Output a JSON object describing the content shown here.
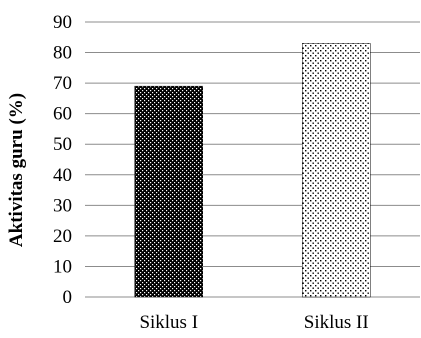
{
  "chart_data": {
    "type": "bar",
    "categories": [
      "Siklus I",
      "Siklus II"
    ],
    "values": [
      69,
      83
    ],
    "title": "",
    "xlabel": "",
    "ylabel": "Aktivitas guru (%)",
    "ylim": [
      0,
      90
    ],
    "yticks": [
      "0",
      "10",
      "20",
      "30",
      "40",
      "50",
      "60",
      "70",
      "80",
      "90"
    ],
    "grid": true,
    "legend": "none",
    "bar_patterns": [
      "dense-dots",
      "sparse-dots"
    ],
    "colors": {
      "bar_fill": "#000000",
      "background": "#ffffff",
      "grid": "#8c8c8c"
    }
  }
}
